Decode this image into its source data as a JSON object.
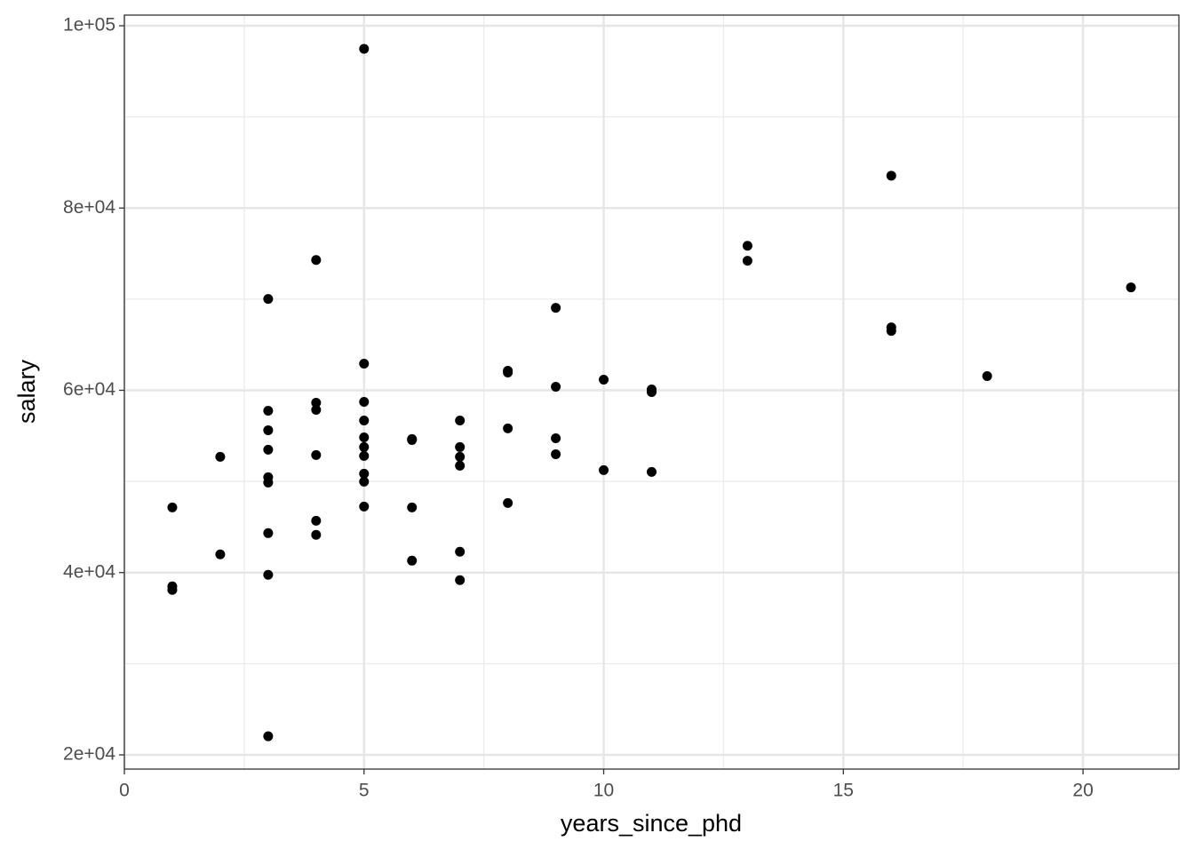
{
  "chart_data": {
    "type": "scatter",
    "x_label": "years_since_phd",
    "y_label": "salary",
    "x": [
      1,
      1,
      1,
      2,
      2,
      3,
      3,
      3,
      3,
      3,
      3,
      3,
      3,
      3,
      4,
      4,
      4,
      4,
      4,
      4,
      5,
      5,
      5,
      5,
      5,
      5,
      5,
      5,
      5,
      5,
      6,
      6,
      6,
      6,
      7,
      7,
      7,
      7,
      7,
      7,
      8,
      8,
      8,
      8,
      9,
      9,
      9,
      9,
      10,
      10,
      11,
      11,
      11,
      13,
      13,
      16,
      16,
      16,
      18,
      21
    ],
    "values": [
      47150,
      38490,
      38100,
      52700,
      42000,
      70020,
      57760,
      55620,
      53480,
      50460,
      49880,
      44330,
      39760,
      22040,
      74300,
      58640,
      57860,
      52900,
      45690,
      44140,
      97470,
      62920,
      58730,
      56690,
      54840,
      53770,
      52800,
      50850,
      49980,
      47250,
      54650,
      54550,
      47150,
      41310,
      56690,
      53770,
      52700,
      51730,
      42290,
      39170,
      62140,
      61950,
      55820,
      47640,
      69050,
      60390,
      54740,
      52990,
      61170,
      51240,
      60100,
      59810,
      51050,
      75860,
      74210,
      83550,
      66910,
      66520,
      61560,
      71290
    ],
    "color": "#000000",
    "xlim": [
      0,
      22
    ],
    "ylim": [
      18440,
      101170
    ],
    "xticks": [
      0,
      5,
      10,
      15,
      20
    ],
    "yticks": [
      {
        "value": 20000,
        "label": "2e+04"
      },
      {
        "value": 40000,
        "label": "4e+04"
      },
      {
        "value": 60000,
        "label": "6e+04"
      },
      {
        "value": 80000,
        "label": "8e+04"
      },
      {
        "value": 100000,
        "label": "1e+05"
      }
    ],
    "x_minor_breaks": [
      2.5,
      7.5,
      12.5,
      17.5
    ],
    "y_minor_breaks": [
      30000,
      50000,
      70000,
      90000
    ],
    "grid": true
  }
}
